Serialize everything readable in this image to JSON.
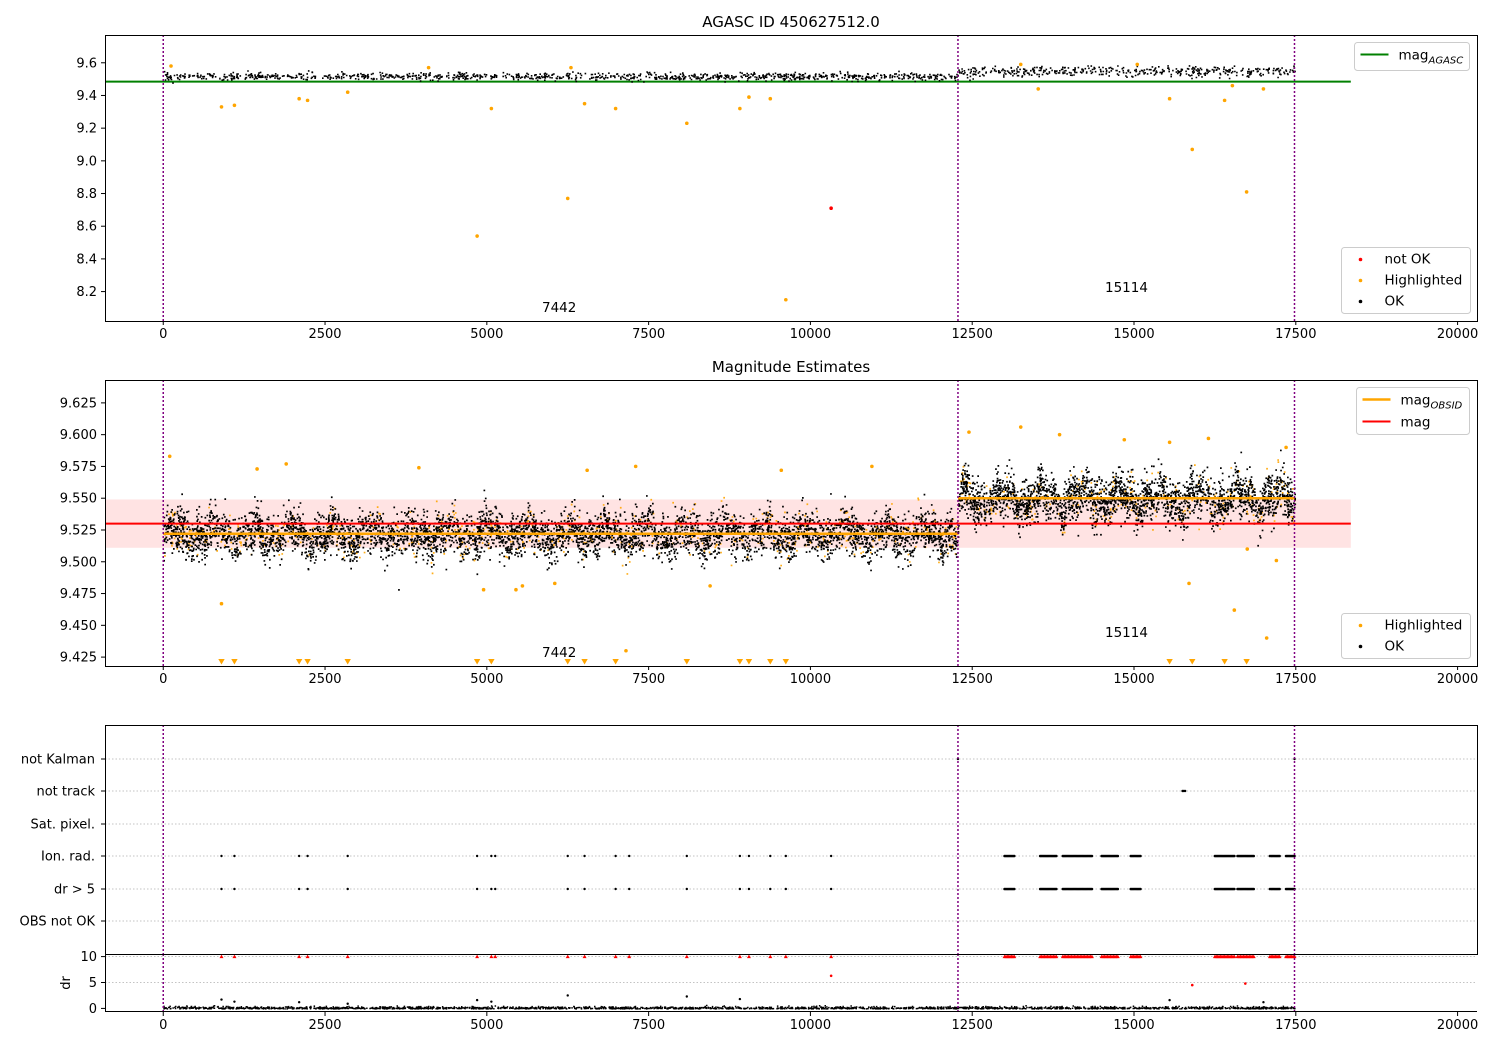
{
  "colors": {
    "ok": "#000000",
    "highlighted": "#ffa500",
    "not_ok": "#ff0000",
    "agasc_line": "#008000",
    "obsid_line": "#ffa500",
    "mag_line": "#ff0000",
    "band": "#ffcccc",
    "vline": "#800080",
    "grid": "#b0b0b0"
  },
  "chart_data": [
    {
      "id": "p1",
      "type": "scatter",
      "title": "AGASC ID 450627512.0",
      "xlabel": "",
      "ylabel": "",
      "xlim": [
        -900,
        20300
      ],
      "ylim": [
        8.02,
        9.77
      ],
      "xticks": [
        0,
        2500,
        5000,
        7500,
        10000,
        12500,
        15000,
        17500,
        20000
      ],
      "yticks": [
        8.2,
        8.4,
        8.6,
        8.8,
        9.0,
        9.2,
        9.4,
        9.6
      ],
      "ytick_labels": [
        "8.2",
        "8.4",
        "8.6",
        "8.8",
        "9.0",
        "9.2",
        "9.4",
        "9.6"
      ],
      "vlines": [
        0,
        12280,
        17480
      ],
      "annotations": [
        {
          "x": 6130,
          "y": 8.09,
          "text": "7442"
        },
        {
          "x": 15000,
          "y": 8.21,
          "text": "15114"
        }
      ],
      "hlines": [
        {
          "name": "mag_AGASC",
          "y": 9.485,
          "x": [
            -900,
            18350
          ],
          "color_key": "agasc_line"
        }
      ],
      "segments": [
        {
          "x": [
            0,
            12280
          ],
          "y": 9.52,
          "spread": 0.025
        },
        {
          "x": [
            12280,
            17480
          ],
          "y": 9.55,
          "spread": 0.035
        }
      ],
      "legends": [
        {
          "position": "top-right",
          "items": [
            {
              "kind": "line",
              "color_key": "agasc_line",
              "label": "mag",
              "sub": "AGASC"
            }
          ]
        },
        {
          "position": "bottom-right",
          "items": [
            {
              "kind": "marker",
              "color_key": "not_ok",
              "label": "not OK"
            },
            {
              "kind": "marker",
              "color_key": "highlighted",
              "label": "Highlighted"
            },
            {
              "kind": "marker",
              "color_key": "ok",
              "label": "OK"
            }
          ]
        }
      ],
      "points": {
        "not_ok": [
          [
            10320,
            8.71
          ]
        ],
        "highlighted": [
          [
            900,
            9.33
          ],
          [
            1100,
            9.34
          ],
          [
            2100,
            9.38
          ],
          [
            2230,
            9.37
          ],
          [
            2850,
            9.42
          ],
          [
            4850,
            8.54
          ],
          [
            5070,
            9.32
          ],
          [
            6250,
            8.77
          ],
          [
            6510,
            9.35
          ],
          [
            6990,
            9.32
          ],
          [
            8090,
            9.23
          ],
          [
            8910,
            9.32
          ],
          [
            9050,
            9.39
          ],
          [
            9380,
            9.38
          ],
          [
            9620,
            8.15
          ],
          [
            13520,
            9.44
          ],
          [
            15550,
            9.38
          ],
          [
            15900,
            9.07
          ],
          [
            16400,
            9.37
          ],
          [
            16520,
            9.46
          ],
          [
            16740,
            8.81
          ],
          [
            17000,
            9.44
          ],
          [
            120,
            9.58
          ],
          [
            4100,
            9.57
          ],
          [
            6300,
            9.57
          ],
          [
            13250,
            9.59
          ],
          [
            15050,
            9.59
          ]
        ]
      }
    },
    {
      "id": "p2",
      "type": "scatter",
      "title": "Magnitude Estimates",
      "xlabel": "",
      "ylabel": "",
      "xlim": [
        -900,
        20300
      ],
      "ylim": [
        9.418,
        9.643
      ],
      "xticks": [
        0,
        2500,
        5000,
        7500,
        10000,
        12500,
        15000,
        17500,
        20000
      ],
      "yticks": [
        9.425,
        9.45,
        9.475,
        9.5,
        9.525,
        9.55,
        9.575,
        9.6,
        9.625
      ],
      "ytick_labels": [
        "9.425",
        "9.450",
        "9.475",
        "9.500",
        "9.525",
        "9.550",
        "9.575",
        "9.600",
        "9.625"
      ],
      "vlines": [
        0,
        12280,
        17480
      ],
      "annotations": [
        {
          "x": 6130,
          "y": 9.426,
          "text": "7442"
        },
        {
          "x": 15000,
          "y": 9.443,
          "text": "15114"
        }
      ],
      "band": {
        "y": [
          9.511,
          9.549
        ],
        "x": [
          -900,
          18350
        ]
      },
      "hlines": [
        {
          "name": "mag",
          "y": 9.53,
          "x": [
            -900,
            18350
          ],
          "color_key": "mag_line"
        },
        {
          "name": "mag_OBSID_1",
          "y": 9.522,
          "x": [
            0,
            12280
          ],
          "color_key": "obsid_line"
        },
        {
          "name": "mag_OBSID_2",
          "y": 9.55,
          "x": [
            12280,
            17480
          ],
          "color_key": "obsid_line"
        }
      ],
      "segments": [
        {
          "x": [
            0,
            12280
          ],
          "y": 9.522,
          "spread": 0.015
        },
        {
          "x": [
            12280,
            17480
          ],
          "y": 9.55,
          "spread": 0.016
        }
      ],
      "legends": [
        {
          "position": "top-right",
          "items": [
            {
              "kind": "line",
              "color_key": "obsid_line",
              "label": "mag",
              "sub": "OBSID"
            },
            {
              "kind": "line",
              "color_key": "mag_line",
              "label": "mag"
            }
          ]
        },
        {
          "position": "bottom-right",
          "items": [
            {
              "kind": "marker",
              "color_key": "highlighted",
              "label": "Highlighted"
            },
            {
              "kind": "marker",
              "color_key": "ok",
              "label": "OK"
            }
          ]
        }
      ],
      "points": {
        "highlighted": [
          [
            900,
            9.467
          ],
          [
            100,
            9.583
          ],
          [
            1450,
            9.573
          ],
          [
            1900,
            9.577
          ],
          [
            3950,
            9.574
          ],
          [
            4950,
            9.478
          ],
          [
            5450,
            9.478
          ],
          [
            5550,
            9.481
          ],
          [
            6050,
            9.483
          ],
          [
            6550,
            9.572
          ],
          [
            7150,
            9.43
          ],
          [
            7300,
            9.575
          ],
          [
            8450,
            9.481
          ],
          [
            9550,
            9.572
          ],
          [
            10950,
            9.575
          ],
          [
            12450,
            9.602
          ],
          [
            13250,
            9.606
          ],
          [
            13850,
            9.6
          ],
          [
            14850,
            9.596
          ],
          [
            15550,
            9.594
          ],
          [
            15850,
            9.483
          ],
          [
            16150,
            9.597
          ],
          [
            16550,
            9.462
          ],
          [
            16750,
            9.51
          ],
          [
            17050,
            9.44
          ],
          [
            17200,
            9.501
          ],
          [
            17350,
            9.59
          ]
        ],
        "highlighted_below": [
          900,
          1100,
          2100,
          2230,
          2850,
          4850,
          5070,
          6250,
          6510,
          6990,
          8090,
          8910,
          9050,
          9380,
          9620,
          15550,
          15900,
          16400,
          16740
        ]
      }
    },
    {
      "id": "p3",
      "type": "scatter",
      "title": "",
      "xlabel": "",
      "ylabel": "",
      "xlim": [
        -900,
        20300
      ],
      "categories": [
        "not Kalman",
        "not track",
        "Sat. pixel.",
        "Ion. rad.",
        "dr > 5",
        "OBS not OK"
      ],
      "vlines": [
        0,
        12280,
        17480
      ],
      "events": {
        "not Kalman": [
          12280,
          17480
        ],
        "not track": [
          15750,
          15770,
          15790
        ],
        "Sat. pixel.": [],
        "Ion. rad.": [
          900,
          1100,
          2100,
          2230,
          2850,
          4850,
          5070,
          5130,
          6250,
          6510,
          6990,
          7200,
          8090,
          8910,
          9050,
          9380,
          9620,
          10320
        ],
        "dr > 5": [
          900,
          1100,
          2100,
          2230,
          2850,
          4850,
          5070,
          5130,
          6250,
          6510,
          6990,
          7200,
          8090,
          8910,
          9050,
          9380,
          9620,
          10320
        ],
        "OBS not OK": []
      },
      "dense_ranges": [
        [
          13000,
          13150
        ],
        [
          13550,
          13800
        ],
        [
          13900,
          14350
        ],
        [
          14500,
          14750
        ],
        [
          14950,
          15100
        ],
        [
          16250,
          16550
        ],
        [
          16600,
          16850
        ],
        [
          17100,
          17250
        ],
        [
          17350,
          17480
        ]
      ]
    },
    {
      "id": "p4",
      "type": "scatter",
      "title": "",
      "xlabel": "",
      "ylabel": "dr",
      "xlim": [
        -900,
        20300
      ],
      "ylim": [
        -0.5,
        10.5
      ],
      "xticks": [
        0,
        2500,
        5000,
        7500,
        10000,
        12500,
        15000,
        17500,
        20000
      ],
      "yticks": [
        0,
        5,
        10
      ],
      "ytick_labels": [
        "0",
        "5",
        "10"
      ],
      "vlines": [
        0,
        12280,
        17480
      ],
      "red_triangles_y": 10,
      "red_triangle_x": [
        900,
        1100,
        2100,
        2230,
        2850,
        4850,
        5070,
        5130,
        6250,
        6510,
        6990,
        7200,
        8090,
        8910,
        9050,
        9380,
        9620,
        10320
      ],
      "red_points": [
        [
          10320,
          6.3
        ],
        [
          15900,
          4.5
        ],
        [
          16720,
          4.8
        ]
      ],
      "black_spikes": [
        [
          900,
          1.7
        ],
        [
          1100,
          1.3
        ],
        [
          2100,
          1.2
        ],
        [
          2850,
          0.9
        ],
        [
          4850,
          1.6
        ],
        [
          5070,
          1.3
        ],
        [
          6250,
          2.5
        ],
        [
          8090,
          2.3
        ],
        [
          8910,
          1.8
        ],
        [
          15550,
          1.6
        ],
        [
          17000,
          1.2
        ]
      ],
      "baseline": 0.2
    }
  ]
}
